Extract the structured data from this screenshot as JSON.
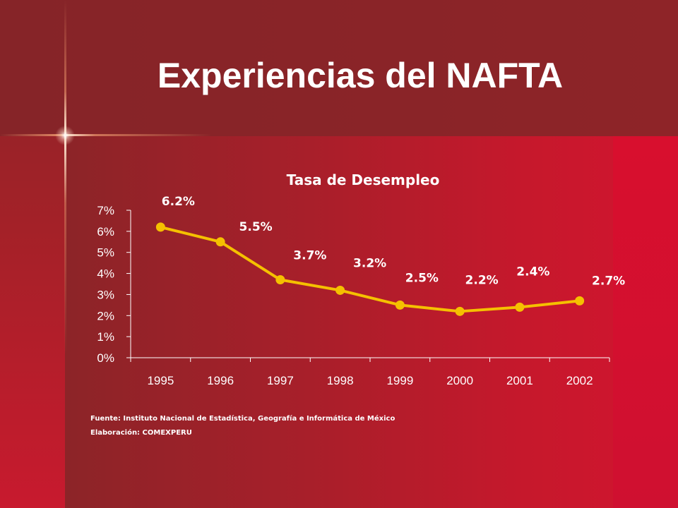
{
  "slide": {
    "title": "Experiencias del NAFTA",
    "source_line": "Fuente: Instituto Nacional de Estadística, Geografía e Informática de México",
    "credit_line": "Elaboración: COMEXPERU"
  },
  "colors": {
    "background_dark": "#862428",
    "background_red": "#d2152f",
    "line": "#f5c000",
    "text": "#ffffff"
  },
  "chart_data": {
    "type": "line",
    "title": "Tasa de Desempleo",
    "x": [
      "1995",
      "1996",
      "1997",
      "1998",
      "1999",
      "2000",
      "2001",
      "2002"
    ],
    "series": [
      {
        "values": [
          6.2,
          5.5,
          3.7,
          3.2,
          2.5,
          2.2,
          2.4,
          2.7
        ]
      }
    ],
    "data_labels": [
      "6.2%",
      "5.5%",
      "3.7%",
      "3.2%",
      "2.5%",
      "2.2%",
      "2.4%",
      "2.7%"
    ],
    "yticks": [
      "0%",
      "1%",
      "2%",
      "3%",
      "4%",
      "5%",
      "6%",
      "7%"
    ],
    "ylim": [
      0,
      7
    ],
    "grid": false,
    "legend": "none"
  }
}
